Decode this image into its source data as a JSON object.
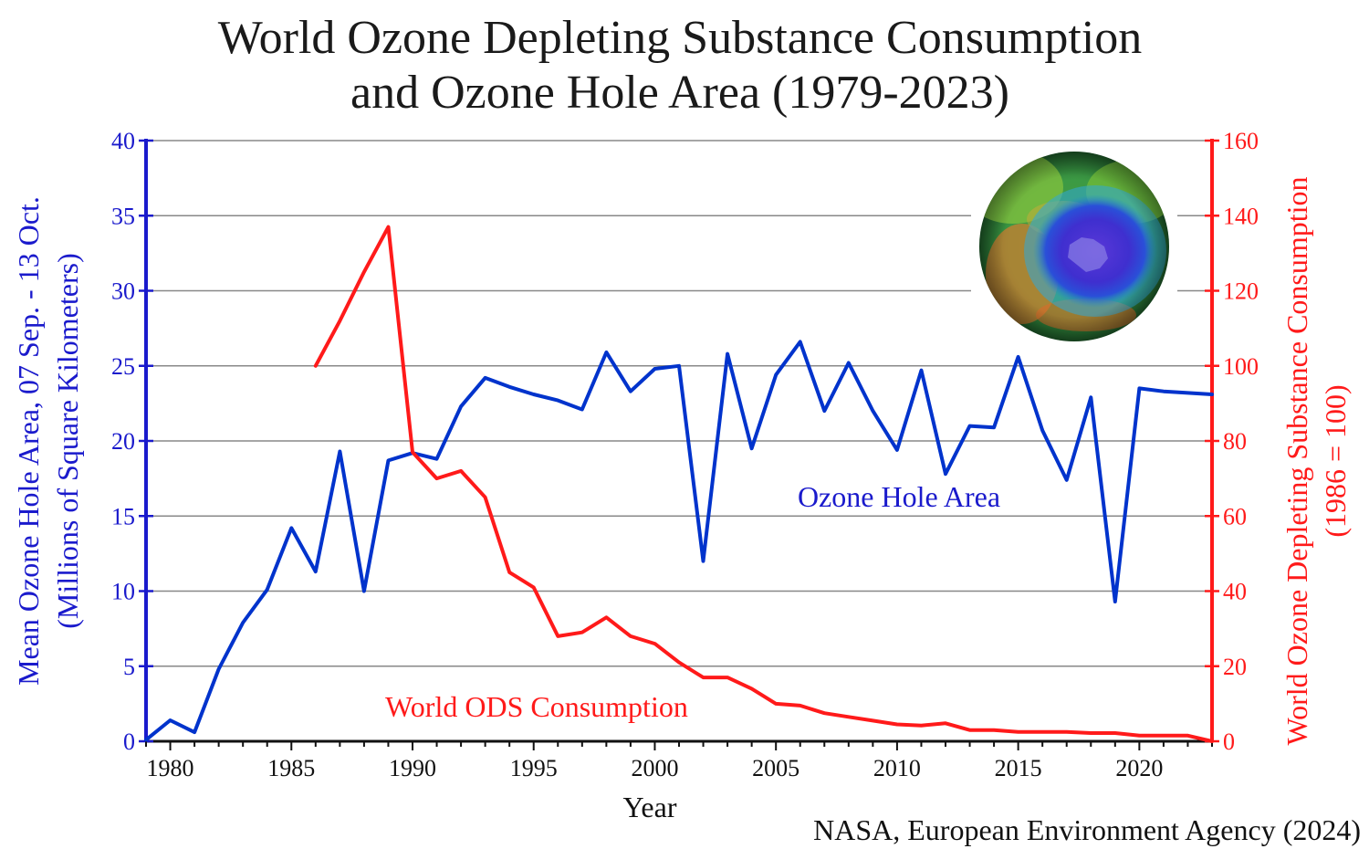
{
  "chart_data": {
    "type": "line",
    "title_line1": "World Ozone Depleting Substance Consumption",
    "title_line2": "and Ozone Hole Area (1979-2023)",
    "xlabel": "Year",
    "ylabel_left_line1": "Mean Ozone Hole Area, 07 Sep. - 13 Oct.",
    "ylabel_left_line2": "(Millions of Square Kilometers)",
    "ylabel_right_line1": "World Ozone Depleting Substance Consumption",
    "ylabel_right_line2": "(1986 = 100)",
    "xlim": [
      1979,
      2023
    ],
    "ylim_left": [
      0,
      40
    ],
    "ylim_right": [
      0,
      160
    ],
    "x_ticks": [
      1980,
      1985,
      1990,
      1995,
      2000,
      2005,
      2010,
      2015,
      2020
    ],
    "y_ticks_left": [
      0,
      5,
      10,
      15,
      20,
      25,
      30,
      35,
      40
    ],
    "y_ticks_right": [
      0,
      20,
      40,
      60,
      80,
      100,
      120,
      140,
      160
    ],
    "grid": true,
    "source": "NASA, European Environment Agency (2024)",
    "series": [
      {
        "name": "Ozone Hole Area",
        "axis": "left",
        "color": "#0033cc",
        "x": [
          1979,
          1980,
          1981,
          1982,
          1983,
          1984,
          1985,
          1986,
          1987,
          1988,
          1989,
          1990,
          1991,
          1992,
          1993,
          1994,
          1995,
          1996,
          1997,
          1998,
          1999,
          2000,
          2001,
          2002,
          2003,
          2004,
          2005,
          2006,
          2007,
          2008,
          2009,
          2010,
          2011,
          2012,
          2013,
          2014,
          2015,
          2016,
          2017,
          2018,
          2019,
          2020,
          2021,
          2022,
          2023
        ],
        "y": [
          0.1,
          1.4,
          0.6,
          4.8,
          7.9,
          10.1,
          14.2,
          11.3,
          19.3,
          10.0,
          18.7,
          19.2,
          18.8,
          22.3,
          24.2,
          23.6,
          23.1,
          22.7,
          22.1,
          25.9,
          23.3,
          24.8,
          25.0,
          12.0,
          25.8,
          19.5,
          24.4,
          26.6,
          22.0,
          25.2,
          22.0,
          19.4,
          24.7,
          17.8,
          21.0,
          20.9,
          25.6,
          20.7,
          17.4,
          22.9,
          9.3,
          23.5,
          23.3,
          23.2,
          23.1
        ]
      },
      {
        "name": "World ODS Consumption",
        "axis": "right",
        "color": "#ff1a1a",
        "x": [
          1986,
          1987,
          1988,
          1989,
          1990,
          1991,
          1992,
          1993,
          1994,
          1995,
          1996,
          1997,
          1998,
          1999,
          2000,
          2001,
          2002,
          2003,
          2004,
          2005,
          2006,
          2007,
          2008,
          2009,
          2010,
          2011,
          2012,
          2013,
          2014,
          2015,
          2016,
          2017,
          2018,
          2019,
          2020,
          2021,
          2022,
          2023
        ],
        "y": [
          100,
          112,
          125,
          137,
          77,
          70,
          72,
          65,
          45,
          41,
          28,
          29,
          33,
          28,
          26,
          21,
          17,
          17,
          14,
          10,
          9.5,
          7.5,
          6.5,
          5.5,
          4.5,
          4.2,
          4.8,
          3,
          3,
          2.5,
          2.5,
          2.5,
          2.2,
          2.2,
          1.5,
          1.5,
          1.5,
          0
        ]
      }
    ],
    "annotations": {
      "ozone_label": "Ozone Hole Area",
      "ods_label": "World ODS Consumption"
    },
    "inset_image": "ozone-globe-icon"
  }
}
